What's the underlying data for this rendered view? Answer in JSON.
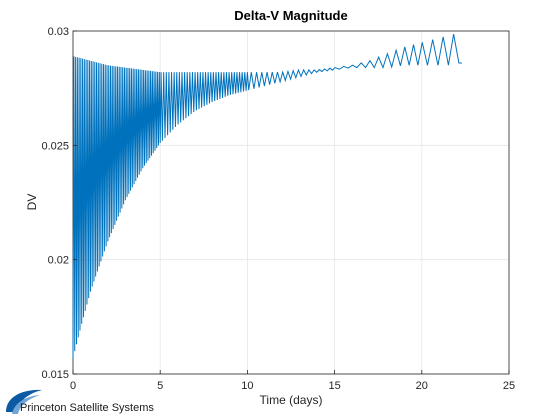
{
  "chart_data": {
    "type": "line",
    "title": "Delta-V Magnitude",
    "xlabel": "Time (days)",
    "ylabel": "DV",
    "xlim": [
      0,
      25
    ],
    "ylim": [
      0.015,
      0.03
    ],
    "xticks": [
      0,
      5,
      10,
      15,
      20,
      25
    ],
    "yticks": [
      0.015,
      0.02,
      0.025,
      0.03
    ],
    "xtick_labels": [
      "0",
      "5",
      "10",
      "15",
      "20",
      "25"
    ],
    "ytick_labels": [
      "0.015",
      "0.02",
      "0.025",
      "0.03"
    ],
    "grid": true,
    "legend": "none",
    "series_color": "#0072BD",
    "series": [
      {
        "envelope": {
          "x": [
            0,
            0.5,
            1,
            2,
            3,
            4,
            5,
            6,
            7,
            8,
            9,
            10,
            11,
            12,
            13,
            14,
            15,
            16,
            17,
            18,
            19,
            20,
            21,
            21.5,
            22,
            22.3
          ],
          "upper": [
            0.0289,
            0.0288,
            0.0287,
            0.0285,
            0.0284,
            0.0283,
            0.0282,
            0.0282,
            0.0282,
            0.0282,
            0.0282,
            0.0282,
            0.0282,
            0.0282,
            0.0283,
            0.0283,
            0.0284,
            0.0285,
            0.0287,
            0.029,
            0.0293,
            0.0295,
            0.0297,
            0.0298,
            0.0299,
            0.0286
          ],
          "lower": [
            0.0157,
            0.0172,
            0.0186,
            0.0208,
            0.0226,
            0.024,
            0.0251,
            0.0259,
            0.0265,
            0.0269,
            0.0272,
            0.0274,
            0.0276,
            0.0278,
            0.028,
            0.0282,
            0.0283,
            0.0284,
            0.0284,
            0.0284,
            0.0285,
            0.0285,
            0.0285,
            0.0285,
            0.0286,
            0.0286
          ]
        },
        "oscillation_period_days": [
          {
            "from": 0,
            "to": 5,
            "period": 0.1
          },
          {
            "from": 5,
            "to": 10,
            "period": 0.15
          },
          {
            "from": 10,
            "to": 15,
            "period": 0.3
          },
          {
            "from": 15,
            "to": 20,
            "period": 0.5
          },
          {
            "from": 20,
            "to": 22.3,
            "period": 0.6
          }
        ]
      }
    ]
  },
  "logo": {
    "text": "Princeton Satellite Systems"
  }
}
